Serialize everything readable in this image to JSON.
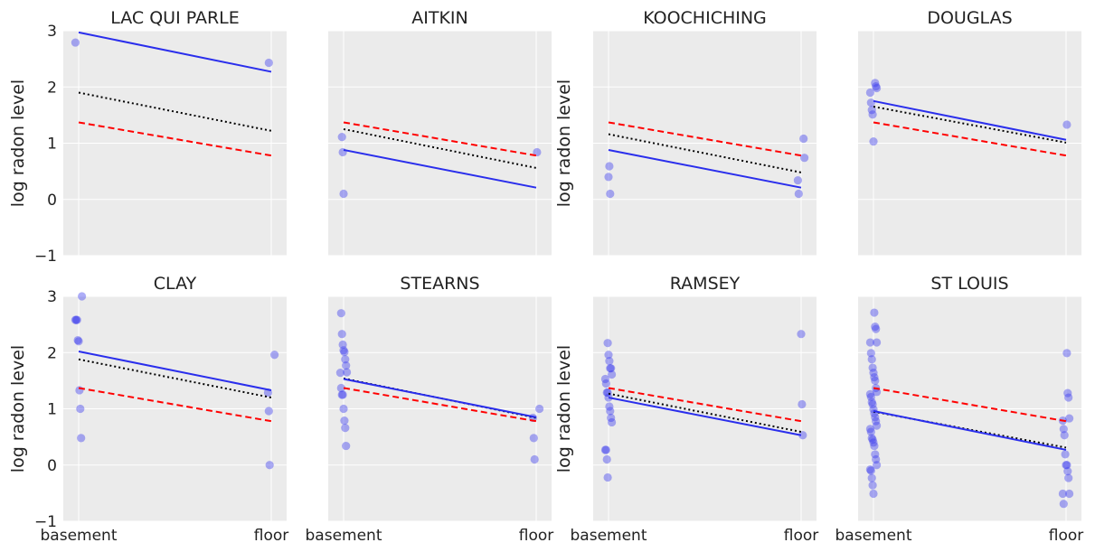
{
  "chart_data": [
    {
      "type": "scatter",
      "title": "LAC QUI PARLE",
      "ylabel": "log radon level",
      "xlabel": "",
      "categories": [
        "basement",
        "floor"
      ],
      "ylim": [
        -1,
        3
      ],
      "yticks": [
        -1,
        0,
        1,
        2,
        3
      ],
      "grid": true,
      "points": [
        [
          0,
          2.79
        ],
        [
          1,
          2.43
        ]
      ],
      "lines": {
        "blue": [
          2.97,
          2.27
        ],
        "black_dotted": [
          1.9,
          1.22
        ],
        "red_dashed": [
          1.37,
          0.78
        ]
      }
    },
    {
      "type": "scatter",
      "title": "AITKIN",
      "ylabel": "",
      "xlabel": "",
      "categories": [
        "basement",
        "floor"
      ],
      "ylim": [
        -1,
        3
      ],
      "yticks": [
        -1,
        0,
        1,
        2,
        3
      ],
      "grid": true,
      "points": [
        [
          0,
          1.11
        ],
        [
          0,
          0.84
        ],
        [
          0,
          0.1
        ],
        [
          1,
          0.84
        ]
      ],
      "lines": {
        "blue": [
          0.88,
          0.21
        ],
        "black_dotted": [
          1.25,
          0.56
        ],
        "red_dashed": [
          1.37,
          0.78
        ]
      }
    },
    {
      "type": "scatter",
      "title": "KOOCHICHING",
      "ylabel": "log radon level",
      "xlabel": "",
      "categories": [
        "basement",
        "floor"
      ],
      "ylim": [
        -1,
        3
      ],
      "yticks": [
        -1,
        0,
        1,
        2,
        3
      ],
      "grid": true,
      "points": [
        [
          0,
          0.4
        ],
        [
          0,
          0.59
        ],
        [
          0,
          0.1
        ],
        [
          1,
          1.08
        ],
        [
          1,
          0.74
        ],
        [
          1,
          0.34
        ],
        [
          1,
          0.1
        ]
      ],
      "lines": {
        "blue": [
          0.88,
          0.21
        ],
        "black_dotted": [
          1.16,
          0.48
        ],
        "red_dashed": [
          1.37,
          0.78
        ]
      }
    },
    {
      "type": "scatter",
      "title": "DOUGLAS",
      "ylabel": "",
      "xlabel": "",
      "categories": [
        "basement",
        "floor"
      ],
      "ylim": [
        -1,
        3
      ],
      "yticks": [
        -1,
        0,
        1,
        2,
        3
      ],
      "grid": true,
      "points": [
        [
          0,
          2.07
        ],
        [
          0,
          2.01
        ],
        [
          0,
          1.98
        ],
        [
          0,
          1.9
        ],
        [
          0,
          1.72
        ],
        [
          0,
          1.59
        ],
        [
          0,
          1.51
        ],
        [
          0,
          1.03
        ],
        [
          1,
          1.33
        ]
      ],
      "lines": {
        "blue": [
          1.75,
          1.06
        ],
        "black_dotted": [
          1.65,
          1.01
        ],
        "red_dashed": [
          1.37,
          0.78
        ]
      }
    },
    {
      "type": "scatter",
      "title": "CLAY",
      "ylabel": "log radon level",
      "xlabel": "",
      "categories": [
        "basement",
        "floor"
      ],
      "ylim": [
        -1,
        3
      ],
      "yticks": [
        -1,
        0,
        1,
        2,
        3
      ],
      "grid": true,
      "points": [
        [
          0,
          3.0
        ],
        [
          0,
          2.58
        ],
        [
          0,
          2.58
        ],
        [
          0,
          2.58
        ],
        [
          0,
          2.22
        ],
        [
          0,
          2.2
        ],
        [
          0,
          1.33
        ],
        [
          0,
          1.0
        ],
        [
          0,
          0.48
        ],
        [
          1,
          1.96
        ],
        [
          1,
          1.29
        ],
        [
          1,
          0.96
        ],
        [
          1,
          0.0
        ]
      ],
      "lines": {
        "blue": [
          2.02,
          1.33
        ],
        "black_dotted": [
          1.88,
          1.2
        ],
        "red_dashed": [
          1.37,
          0.78
        ]
      }
    },
    {
      "type": "scatter",
      "title": "STEARNS",
      "ylabel": "",
      "xlabel": "",
      "categories": [
        "basement",
        "floor"
      ],
      "ylim": [
        -1,
        3
      ],
      "yticks": [
        -1,
        0,
        1,
        2,
        3
      ],
      "grid": true,
      "points": [
        [
          0,
          2.7
        ],
        [
          0,
          2.33
        ],
        [
          0,
          2.14
        ],
        [
          0,
          2.04
        ],
        [
          0,
          2.01
        ],
        [
          0,
          1.88
        ],
        [
          0,
          1.77
        ],
        [
          0,
          1.65
        ],
        [
          0,
          1.64
        ],
        [
          0,
          1.37
        ],
        [
          0,
          1.25
        ],
        [
          0,
          1.25
        ],
        [
          0,
          1.0
        ],
        [
          0,
          0.79
        ],
        [
          0,
          0.66
        ],
        [
          0,
          0.34
        ],
        [
          1,
          1.0
        ],
        [
          1,
          0.84
        ],
        [
          1,
          0.48
        ],
        [
          1,
          0.1
        ]
      ],
      "lines": {
        "blue": [
          1.53,
          0.85
        ],
        "black_dotted": [
          1.54,
          0.84
        ],
        "red_dashed": [
          1.37,
          0.78
        ]
      }
    },
    {
      "type": "scatter",
      "title": "RAMSEY",
      "ylabel": "log radon level",
      "xlabel": "",
      "categories": [
        "basement",
        "floor"
      ],
      "ylim": [
        -1,
        3
      ],
      "yticks": [
        -1,
        0,
        1,
        2,
        3
      ],
      "grid": true,
      "points": [
        [
          0,
          2.17
        ],
        [
          0,
          1.96
        ],
        [
          0,
          1.85
        ],
        [
          0,
          1.72
        ],
        [
          0,
          1.72
        ],
        [
          0,
          1.61
        ],
        [
          0,
          1.53
        ],
        [
          0,
          1.45
        ],
        [
          0,
          1.29
        ],
        [
          0,
          1.29
        ],
        [
          0,
          1.2
        ],
        [
          0,
          1.04
        ],
        [
          0,
          0.96
        ],
        [
          0,
          0.84
        ],
        [
          0,
          0.76
        ],
        [
          0,
          0.27
        ],
        [
          0,
          0.27
        ],
        [
          0,
          0.1
        ],
        [
          0,
          -0.22
        ],
        [
          1,
          2.33
        ],
        [
          1,
          1.08
        ],
        [
          1,
          0.53
        ]
      ],
      "lines": {
        "blue": [
          1.2,
          0.53
        ],
        "black_dotted": [
          1.27,
          0.59
        ],
        "red_dashed": [
          1.37,
          0.78
        ]
      }
    },
    {
      "type": "scatter",
      "title": "ST LOUIS",
      "ylabel": "",
      "xlabel": "",
      "categories": [
        "basement",
        "floor"
      ],
      "ylim": [
        -1,
        3
      ],
      "yticks": [
        -1,
        0,
        1,
        2,
        3
      ],
      "grid": true,
      "points": [
        [
          0,
          2.71
        ],
        [
          0,
          2.46
        ],
        [
          0,
          2.42
        ],
        [
          0,
          2.18
        ],
        [
          0,
          2.18
        ],
        [
          0,
          1.99
        ],
        [
          0,
          1.88
        ],
        [
          0,
          1.73
        ],
        [
          0,
          1.64
        ],
        [
          0,
          1.56
        ],
        [
          0,
          1.5
        ],
        [
          0,
          1.37
        ],
        [
          0,
          1.3
        ],
        [
          0,
          1.26
        ],
        [
          0,
          1.21
        ],
        [
          0,
          1.12
        ],
        [
          0,
          1.08
        ],
        [
          0,
          0.99
        ],
        [
          0,
          0.92
        ],
        [
          0,
          0.85
        ],
        [
          0,
          0.78
        ],
        [
          0,
          0.7
        ],
        [
          0,
          0.64
        ],
        [
          0,
          0.59
        ],
        [
          0,
          0.48
        ],
        [
          0,
          0.45
        ],
        [
          0,
          0.4
        ],
        [
          0,
          0.34
        ],
        [
          0,
          0.19
        ],
        [
          0,
          0.1
        ],
        [
          0,
          0.0
        ],
        [
          0,
          -0.08
        ],
        [
          0,
          -0.1
        ],
        [
          0,
          -0.23
        ],
        [
          0,
          -0.36
        ],
        [
          0,
          -0.51
        ],
        [
          1,
          1.99
        ],
        [
          1,
          1.28
        ],
        [
          1,
          1.2
        ],
        [
          1,
          0.83
        ],
        [
          1,
          0.79
        ],
        [
          1,
          0.64
        ],
        [
          1,
          0.53
        ],
        [
          1,
          0.19
        ],
        [
          1,
          0.0
        ],
        [
          1,
          0.0
        ],
        [
          1,
          -0.11
        ],
        [
          1,
          -0.23
        ],
        [
          1,
          -0.51
        ],
        [
          1,
          -0.51
        ],
        [
          1,
          -0.69
        ]
      ],
      "lines": {
        "blue": [
          0.96,
          0.27
        ],
        "black_dotted": [
          0.95,
          0.31
        ],
        "red_dashed": [
          1.37,
          0.78
        ]
      }
    }
  ],
  "colors": {
    "background": "#ebebeb",
    "points": "#3b3bee",
    "blue_line": "#2a2eec",
    "black_line": "#000000",
    "red_line": "#ff0000",
    "grid": "#ffffff"
  }
}
